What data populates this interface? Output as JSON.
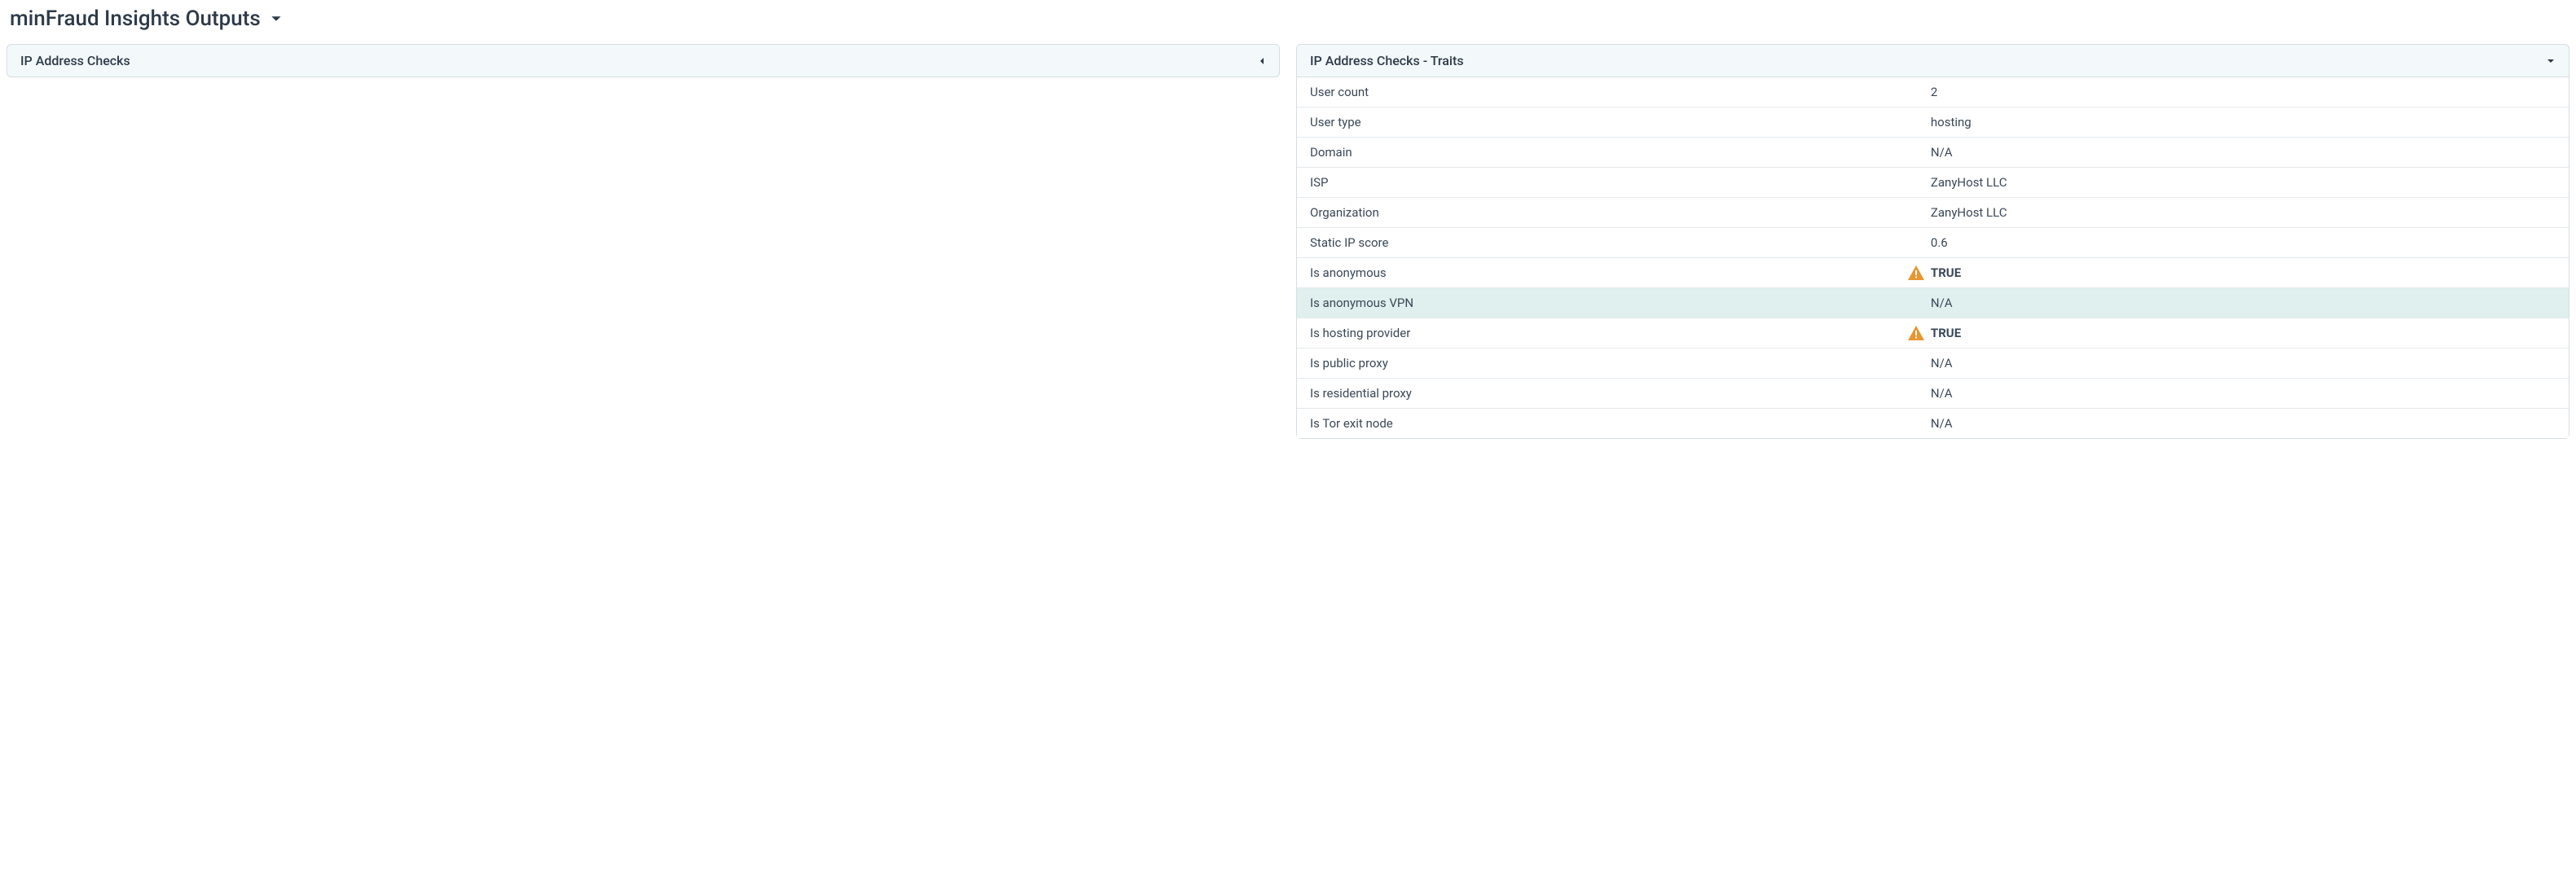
{
  "header": {
    "title": "minFraud Insights Outputs"
  },
  "left_panel": {
    "title": "IP Address Checks"
  },
  "right_panel": {
    "title": "IP Address Checks - Traits",
    "rows": [
      {
        "label": "User count",
        "value": "2",
        "warning": false,
        "bold": false,
        "highlight": false
      },
      {
        "label": "User type",
        "value": "hosting",
        "warning": false,
        "bold": false,
        "highlight": false
      },
      {
        "label": "Domain",
        "value": "N/A",
        "warning": false,
        "bold": false,
        "highlight": false
      },
      {
        "label": "ISP",
        "value": "ZanyHost LLC",
        "warning": false,
        "bold": false,
        "highlight": false
      },
      {
        "label": "Organization",
        "value": "ZanyHost LLC",
        "warning": false,
        "bold": false,
        "highlight": false
      },
      {
        "label": "Static IP score",
        "value": "0.6",
        "warning": false,
        "bold": false,
        "highlight": false
      },
      {
        "label": "Is anonymous",
        "value": "TRUE",
        "warning": true,
        "bold": true,
        "highlight": false
      },
      {
        "label": "Is anonymous VPN",
        "value": "N/A",
        "warning": false,
        "bold": false,
        "highlight": true
      },
      {
        "label": "Is hosting provider",
        "value": "TRUE",
        "warning": true,
        "bold": true,
        "highlight": false
      },
      {
        "label": "Is public proxy",
        "value": "N/A",
        "warning": false,
        "bold": false,
        "highlight": false
      },
      {
        "label": "Is residential proxy",
        "value": "N/A",
        "warning": false,
        "bold": false,
        "highlight": false
      },
      {
        "label": "Is Tor exit node",
        "value": "N/A",
        "warning": false,
        "bold": false,
        "highlight": false
      }
    ]
  },
  "colors": {
    "warning_icon": "#e8962f",
    "panel_header_bg": "#f3f8fa",
    "border": "#d6dde3",
    "row_border": "#e4e9ed",
    "highlight_bg": "#dff0ee",
    "text": "#3a4857",
    "title_text": "#2d3a48"
  }
}
